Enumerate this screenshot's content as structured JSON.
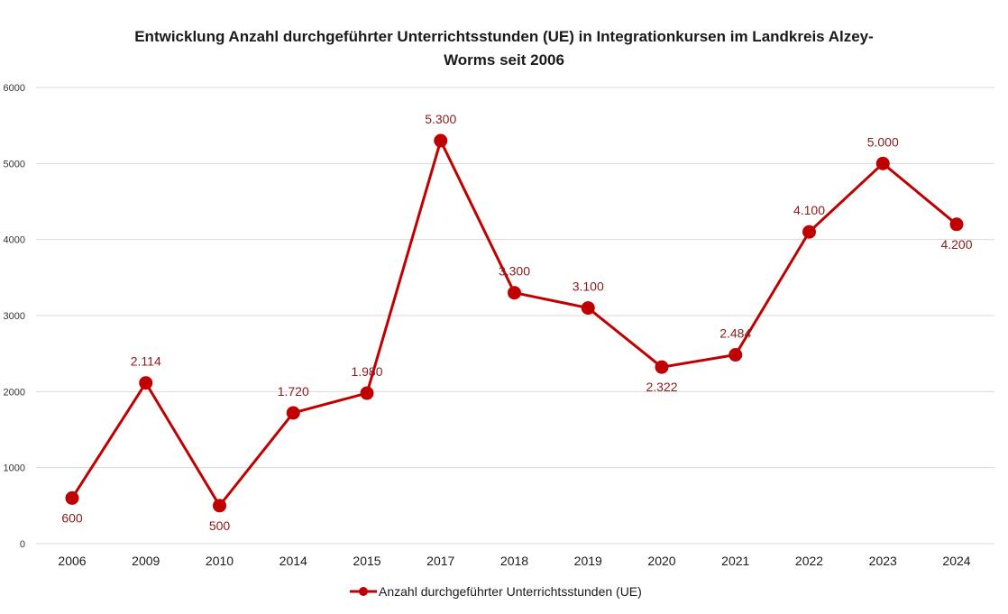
{
  "chart_data": {
    "type": "line",
    "title_line1": "Entwicklung Anzahl durchgeführter Unterrichtsstunden (UE) in Integrationkursen im Landkreis Alzey-",
    "title_line2": "Worms seit 2006",
    "categories": [
      "2006",
      "2009",
      "2010",
      "2014",
      "2015",
      "2017",
      "2018",
      "2019",
      "2020",
      "2021",
      "2022",
      "2023",
      "2024"
    ],
    "series": [
      {
        "name": "Anzahl durchgeführter Unterrichtsstunden (UE)",
        "values": [
          600,
          2114,
          500,
          1720,
          1980,
          5300,
          3300,
          3100,
          2322,
          2484,
          4100,
          5000,
          4200
        ],
        "labels": [
          "600",
          "2.114",
          "500",
          "1.720",
          "1.980",
          "5.300",
          "3.300",
          "3.100",
          "2.322",
          "2.484",
          "4.100",
          "5.000",
          "4.200"
        ],
        "color": "#C00000",
        "label_color": "#8B1A1A"
      }
    ],
    "ylim": [
      0,
      6000
    ],
    "yticks": [
      "0",
      "1000",
      "2000",
      "3000",
      "4000",
      "5000",
      "6000"
    ],
    "grid": true,
    "legend_position": "bottom",
    "xlabel": "",
    "ylabel": ""
  }
}
